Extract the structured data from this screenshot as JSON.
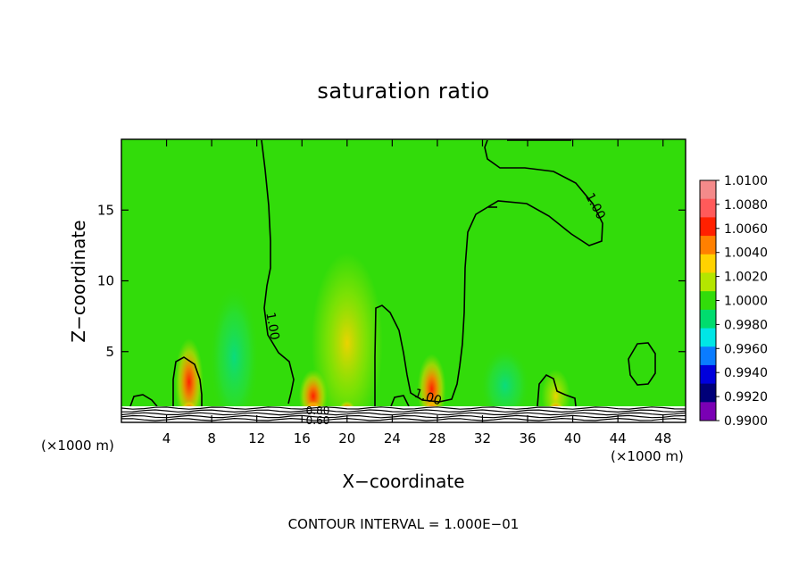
{
  "chart_data": {
    "type": "heatmap",
    "title": "saturation ratio",
    "xlabel": "X−coordinate",
    "ylabel": "Z−coordinate",
    "x_unit_left": "(×1000 m)",
    "x_unit_right": "(×1000 m)",
    "xlim": [
      0,
      50
    ],
    "ylim": [
      0,
      20
    ],
    "x_ticks": [
      4,
      8,
      12,
      16,
      20,
      24,
      28,
      32,
      36,
      40,
      44,
      48
    ],
    "y_ticks": [
      5,
      10,
      15
    ],
    "colorbar": {
      "levels": [
        "1.0100",
        "1.0080",
        "1.0060",
        "1.0040",
        "1.0020",
        "1.0000",
        "0.9980",
        "0.9960",
        "0.9940",
        "0.9920",
        "0.9900"
      ],
      "colors": [
        "#f48a8a",
        "#ff5a5a",
        "#ff2000",
        "#ff8000",
        "#ffd200",
        "#b4e600",
        "#32dc0a",
        "#00dc6e",
        "#00e6e6",
        "#0a7cff",
        "#0000dc",
        "#000078",
        "#7a00b4"
      ]
    },
    "contour_labels": [
      "1.00",
      "1.00",
      "1.00",
      "0.80",
      "0.60"
    ],
    "background_value": 1.0,
    "features": [
      {
        "kind": "supersaturated_plume",
        "x": 6,
        "z_top": 4.5,
        "max": 1.006
      },
      {
        "kind": "supersaturated_plume",
        "x": 17,
        "z_top": 2.5,
        "max": 1.008
      },
      {
        "kind": "supersaturated_plume",
        "x": 20,
        "z_top": 10,
        "max": 1.004
      },
      {
        "kind": "supersaturated_plume",
        "x": 27.5,
        "z_top": 3.5,
        "max": 1.006
      },
      {
        "kind": "supersaturated_plume",
        "x": 38.5,
        "z_top": 2.5,
        "max": 1.004
      },
      {
        "kind": "subsaturated_cell",
        "x": 10,
        "z_top": 8,
        "min": 0.997
      },
      {
        "kind": "subsaturated_cell",
        "x": 34,
        "z_top": 4,
        "min": 0.997
      }
    ],
    "footer": "CONTOUR INTERVAL = 1.000E−01"
  }
}
